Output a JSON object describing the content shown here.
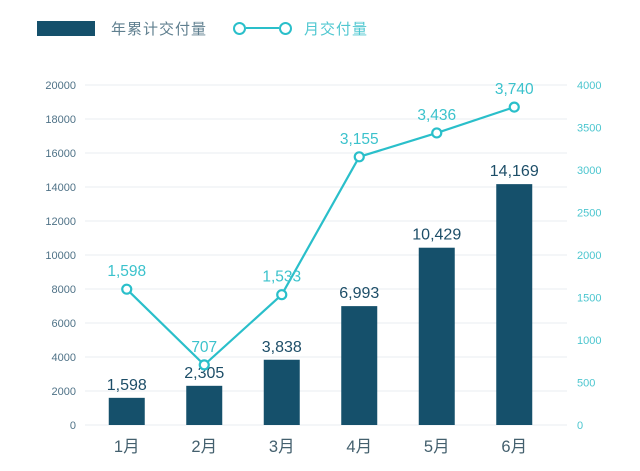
{
  "legend": {
    "bar_label": "年累计交付量",
    "line_label": "月交付量"
  },
  "colors": {
    "background": "#ffffff",
    "bar_fill": "#15506b",
    "bar_value_label": "#1d4e68",
    "line": "#2abfca",
    "line_value_label": "#3bc2cc",
    "left_axis_ticks": "#4f7287",
    "right_axis_ticks": "#4cc6cf",
    "x_axis_labels": "#44606e",
    "gridline": "#e9edf0",
    "legend_bar_text": "#5f7f8f",
    "legend_line_text": "#4fc7d0"
  },
  "chart_data": {
    "type": "bar",
    "subtype": "combo-bar-line-dual-axis",
    "title": "",
    "xlabel": "",
    "ylabel_left": "",
    "ylabel_right": "",
    "grid": true,
    "legend_position": "top-left",
    "categories": [
      "1月",
      "2月",
      "3月",
      "4月",
      "5月",
      "6月"
    ],
    "series": [
      {
        "name": "年累计交付量",
        "type": "bar",
        "axis": "left",
        "values": [
          1598,
          2305,
          3838,
          6993,
          10429,
          14169
        ],
        "labels": [
          "1,598",
          "2,305",
          "3,838",
          "6,993",
          "10,429",
          "14,169"
        ]
      },
      {
        "name": "月交付量",
        "type": "line",
        "axis": "right",
        "values": [
          1598,
          707,
          1533,
          3155,
          3436,
          3740
        ],
        "labels": [
          "1,598",
          "707",
          "1,533",
          "3,155",
          "3,436",
          "3,740"
        ]
      }
    ],
    "left_axis": {
      "min": 0,
      "max": 20000,
      "step": 2000,
      "ticks": [
        "0",
        "2000",
        "4000",
        "6000",
        "8000",
        "10000",
        "12000",
        "14000",
        "16000",
        "18000",
        "20000"
      ]
    },
    "right_axis": {
      "min": 0,
      "max": 4000,
      "step": 500,
      "ticks": [
        "0",
        "500",
        "1000",
        "1500",
        "2000",
        "2500",
        "3000",
        "3500",
        "4000"
      ]
    }
  }
}
